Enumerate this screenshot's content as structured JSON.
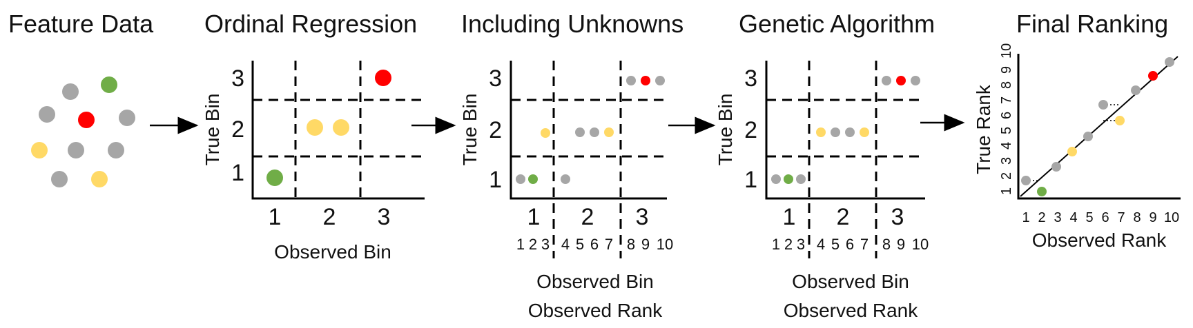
{
  "colors": {
    "gray": "#a6a6a6",
    "green": "#70ad47",
    "red": "#ff0000",
    "yellow": "#ffd966",
    "black": "#000000"
  },
  "panels": {
    "feature": {
      "title": "Feature Data"
    },
    "ordinal": {
      "title": "Ordinal Regression",
      "ylabel": "True Bin",
      "xlabel": "Observed Bin",
      "ybins": [
        "1",
        "2",
        "3"
      ],
      "xbins": [
        "1",
        "2",
        "3"
      ]
    },
    "unknowns": {
      "title": "Including Unknowns",
      "ylabel": "True Bin",
      "xlabel_line1": "Observed Bin",
      "xlabel_line2": "Observed Rank",
      "ybins": [
        "1",
        "2",
        "3"
      ],
      "xbins": [
        "1",
        "2",
        "3"
      ],
      "ranks": [
        "1",
        "2",
        "3",
        "4",
        "5",
        "6",
        "7",
        "8",
        "9",
        "10"
      ]
    },
    "genetic": {
      "title": "Genetic Algorithm",
      "ylabel": "True Bin",
      "xlabel_line1": "Observed Bin",
      "xlabel_line2": "Observed Rank",
      "ybins": [
        "1",
        "2",
        "3"
      ],
      "xbins": [
        "1",
        "2",
        "3"
      ],
      "ranks": [
        "1",
        "2",
        "3",
        "4",
        "5",
        "6",
        "7",
        "8",
        "9",
        "10"
      ]
    },
    "final": {
      "title": "Final Ranking",
      "ylabel": "True Rank",
      "xlabel": "Observed Rank",
      "ranks": [
        "1",
        "2",
        "3",
        "4",
        "5",
        "6",
        "7",
        "8",
        "9",
        "10"
      ]
    }
  }
}
